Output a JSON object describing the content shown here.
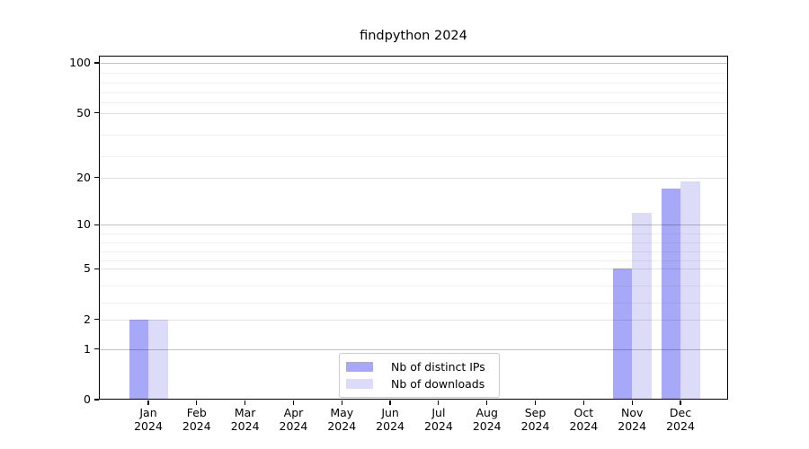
{
  "chart_data": {
    "type": "bar",
    "title": "findpython 2024",
    "categories": [
      "Jan 2024",
      "Feb 2024",
      "Mar 2024",
      "Apr 2024",
      "May 2024",
      "Jun 2024",
      "Jul 2024",
      "Aug 2024",
      "Sep 2024",
      "Oct 2024",
      "Nov 2024",
      "Dec 2024"
    ],
    "x_tick_labels": [
      [
        "Jan",
        "2024"
      ],
      [
        "Feb",
        "2024"
      ],
      [
        "Mar",
        "2024"
      ],
      [
        "Apr",
        "2024"
      ],
      [
        "May",
        "2024"
      ],
      [
        "Jun",
        "2024"
      ],
      [
        "Jul",
        "2024"
      ],
      [
        "Aug",
        "2024"
      ],
      [
        "Sep",
        "2024"
      ],
      [
        "Oct",
        "2024"
      ],
      [
        "Nov",
        "2024"
      ],
      [
        "Dec",
        "2024"
      ]
    ],
    "series": [
      {
        "name": "Nb of distinct IPs",
        "color": "#a8a8f8",
        "values": [
          2,
          0,
          0,
          0,
          0,
          0,
          0,
          0,
          0,
          0,
          5,
          17
        ]
      },
      {
        "name": "Nb of downloads",
        "color": "#dcdcf8",
        "values": [
          2,
          0,
          0,
          0,
          0,
          0,
          0,
          0,
          0,
          0,
          12,
          19
        ]
      }
    ],
    "yscale": "log1p",
    "ylim": [
      0,
      110
    ],
    "yticks_major": [
      0,
      1,
      2,
      5,
      10,
      20,
      50,
      100
    ],
    "yticks_decade": [
      1,
      10,
      100
    ],
    "yticks_minor": [
      3,
      4,
      6,
      7,
      8,
      9,
      30,
      40,
      60,
      70,
      80,
      90
    ],
    "grid": true,
    "legend": {
      "location": "lower center",
      "entries": [
        "Nb of distinct IPs",
        "Nb of downloads"
      ]
    }
  },
  "colors": {
    "bar_distinct_ips": "#a8a8f8",
    "bar_downloads": "#dcdcf8",
    "spine": "#000000",
    "legend_border": "#cccccc"
  }
}
